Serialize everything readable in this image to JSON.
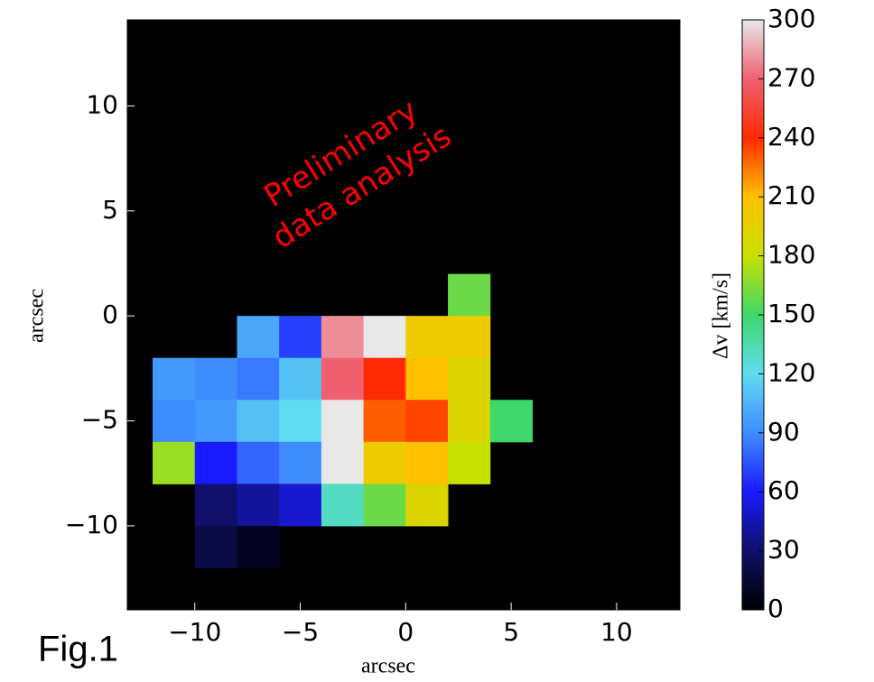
{
  "chart_data": {
    "type": "heatmap",
    "xlabel": "arcsec",
    "ylabel": "arcsec",
    "xlim": [
      -13.2,
      13
    ],
    "ylim": [
      -14,
      14.1
    ],
    "xticks": [
      {
        "value": -10,
        "label": "−10"
      },
      {
        "value": -5,
        "label": "−5"
      },
      0,
      5,
      10
    ],
    "yticks": [
      {
        "value": -10,
        "label": "−10"
      },
      {
        "value": -5,
        "label": "−5"
      },
      0,
      5,
      10
    ],
    "x": [
      -11,
      -9,
      -7,
      -5,
      -3,
      -1,
      1,
      3,
      5
    ],
    "y": [
      1,
      -1,
      -3,
      -5,
      -7,
      -9,
      -11
    ],
    "z": [
      [
        null,
        null,
        null,
        null,
        null,
        null,
        null,
        160,
        null
      ],
      [
        null,
        null,
        100,
        70,
        280,
        300,
        200,
        200,
        null
      ],
      [
        95,
        90,
        85,
        110,
        270,
        240,
        210,
        190,
        null
      ],
      [
        90,
        95,
        110,
        120,
        300,
        230,
        235,
        190,
        150
      ],
      [
        170,
        60,
        80,
        90,
        300,
        200,
        210,
        180,
        null
      ],
      [
        null,
        30,
        40,
        50,
        130,
        160,
        190,
        null,
        null
      ],
      [
        null,
        20,
        10,
        null,
        null,
        null,
        null,
        null,
        null
      ]
    ],
    "background": "#000000",
    "colorbar_label": "Δv [km/s]",
    "zlim": [
      0,
      300
    ],
    "zticks": [
      0,
      30,
      60,
      90,
      120,
      150,
      180,
      210,
      240,
      270,
      300
    ],
    "colormap": [
      "#000000",
      "#10106a",
      "#1a1aff",
      "#3f8cff",
      "#5fdcf0",
      "#3ed86a",
      "#c8e000",
      "#ffc000",
      "#ff2a00",
      "#f06070",
      "#e8e8e8"
    ],
    "annotation": [
      "Preliminary",
      "data analysis"
    ],
    "annotation_color": "#ff0000",
    "figure_label": "Fig.1"
  }
}
